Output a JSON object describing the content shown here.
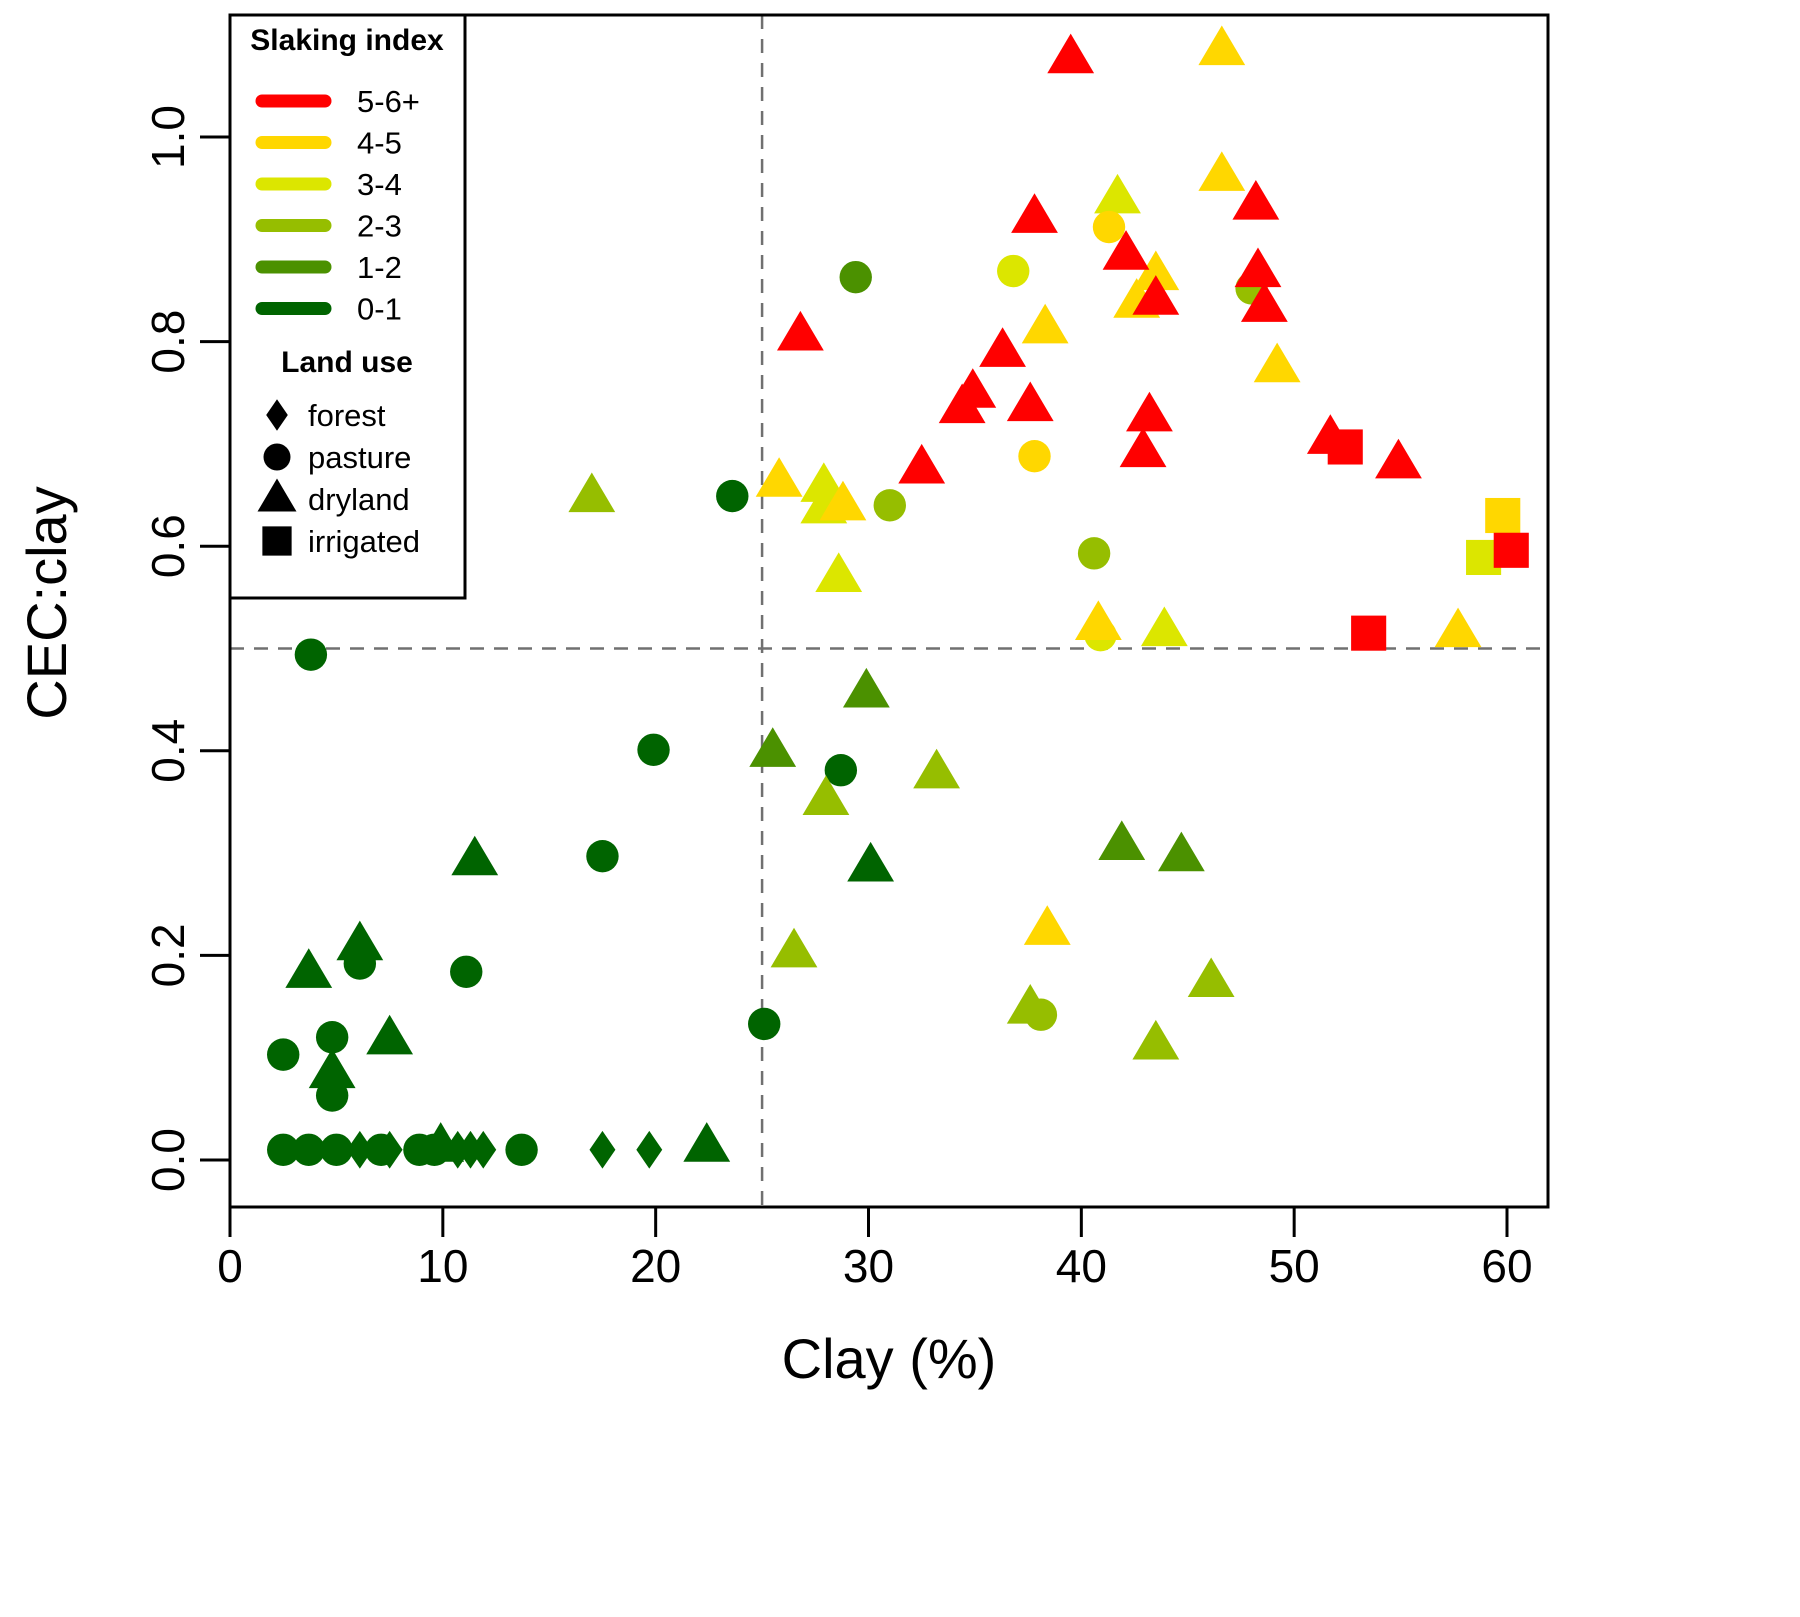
{
  "chart_data": {
    "type": "scatter",
    "title": "",
    "xlabel": "Clay (%)",
    "ylabel": "CEC:clay",
    "xlim": [
      0,
      62
    ],
    "ylim": [
      -0.045,
      1.12
    ],
    "xticks": [
      0,
      10,
      20,
      30,
      40,
      50,
      60
    ],
    "yticks": [
      0.0,
      0.2,
      0.4,
      0.6,
      0.8,
      1.0
    ],
    "xtick_labels": [
      "0",
      "10",
      "20",
      "30",
      "40",
      "50",
      "60"
    ],
    "ytick_labels": [
      "0.0",
      "0.2",
      "0.4",
      "0.6",
      "0.8",
      "1.0"
    ],
    "grid": false,
    "reference_lines": {
      "vertical_x": 25,
      "horizontal_y": 0.5,
      "style": "dashed",
      "color": "#707070"
    },
    "legend": {
      "placement": "top-left",
      "color_title": "Slaking index",
      "color_entries": [
        {
          "key": "5-6+",
          "label": "5-6+",
          "color": "#FF0000"
        },
        {
          "key": "4-5",
          "label": "4-5",
          "color": "#FFD700"
        },
        {
          "key": "3-4",
          "label": "3-4",
          "color": "#DCE600"
        },
        {
          "key": "2-3",
          "label": "2-3",
          "color": "#96BE00"
        },
        {
          "key": "1-2",
          "label": "1-2",
          "color": "#4B9100"
        },
        {
          "key": "0-1",
          "label": "0-1",
          "color": "#006400"
        }
      ],
      "shape_title": "Land use",
      "shape_entries": [
        {
          "key": "forest",
          "label": "forest",
          "shape": "diamond"
        },
        {
          "key": "pasture",
          "label": "pasture",
          "shape": "circle"
        },
        {
          "key": "dryland",
          "label": "dryland",
          "shape": "triangle"
        },
        {
          "key": "irrigated",
          "label": "irrigated",
          "shape": "square"
        }
      ]
    },
    "points": [
      {
        "x": 2.5,
        "y": 0.01,
        "land_use": "pasture",
        "slaking": "0-1"
      },
      {
        "x": 3.7,
        "y": 0.01,
        "land_use": "pasture",
        "slaking": "0-1"
      },
      {
        "x": 5.0,
        "y": 0.01,
        "land_use": "pasture",
        "slaking": "0-1"
      },
      {
        "x": 6.1,
        "y": 0.01,
        "land_use": "forest",
        "slaking": "0-1"
      },
      {
        "x": 7.1,
        "y": 0.01,
        "land_use": "pasture",
        "slaking": "0-1"
      },
      {
        "x": 7.5,
        "y": 0.01,
        "land_use": "forest",
        "slaking": "0-1"
      },
      {
        "x": 8.9,
        "y": 0.01,
        "land_use": "pasture",
        "slaking": "0-1"
      },
      {
        "x": 9.6,
        "y": 0.01,
        "land_use": "pasture",
        "slaking": "0-1"
      },
      {
        "x": 9.9,
        "y": 0.013,
        "land_use": "dryland",
        "slaking": "0-1"
      },
      {
        "x": 10.7,
        "y": 0.01,
        "land_use": "forest",
        "slaking": "0-1"
      },
      {
        "x": 11.3,
        "y": 0.01,
        "land_use": "forest",
        "slaking": "0-1"
      },
      {
        "x": 11.9,
        "y": 0.01,
        "land_use": "forest",
        "slaking": "0-1"
      },
      {
        "x": 13.7,
        "y": 0.01,
        "land_use": "pasture",
        "slaking": "0-1"
      },
      {
        "x": 17.5,
        "y": 0.01,
        "land_use": "forest",
        "slaking": "0-1"
      },
      {
        "x": 19.7,
        "y": 0.01,
        "land_use": "forest",
        "slaking": "0-1"
      },
      {
        "x": 22.4,
        "y": 0.013,
        "land_use": "dryland",
        "slaking": "0-1"
      },
      {
        "x": 2.5,
        "y": 0.103,
        "land_use": "pasture",
        "slaking": "0-1"
      },
      {
        "x": 4.8,
        "y": 0.12,
        "land_use": "pasture",
        "slaking": "0-1"
      },
      {
        "x": 4.8,
        "y": 0.063,
        "land_use": "pasture",
        "slaking": "0-1"
      },
      {
        "x": 4.8,
        "y": 0.085,
        "land_use": "dryland",
        "slaking": "0-1"
      },
      {
        "x": 7.5,
        "y": 0.118,
        "land_use": "dryland",
        "slaking": "0-1"
      },
      {
        "x": 3.7,
        "y": 0.183,
        "land_use": "dryland",
        "slaking": "0-1"
      },
      {
        "x": 6.1,
        "y": 0.192,
        "land_use": "pasture",
        "slaking": "0-1"
      },
      {
        "x": 6.1,
        "y": 0.21,
        "land_use": "dryland",
        "slaking": "0-1"
      },
      {
        "x": 11.1,
        "y": 0.184,
        "land_use": "pasture",
        "slaking": "0-1"
      },
      {
        "x": 11.5,
        "y": 0.293,
        "land_use": "dryland",
        "slaking": "0-1"
      },
      {
        "x": 17.5,
        "y": 0.297,
        "land_use": "pasture",
        "slaking": "0-1"
      },
      {
        "x": 19.9,
        "y": 0.401,
        "land_use": "pasture",
        "slaking": "0-1"
      },
      {
        "x": 3.8,
        "y": 0.494,
        "land_use": "pasture",
        "slaking": "0-1"
      },
      {
        "x": 23.6,
        "y": 0.649,
        "land_use": "pasture",
        "slaking": "0-1"
      },
      {
        "x": 25.1,
        "y": 0.133,
        "land_use": "pasture",
        "slaking": "0-1"
      },
      {
        "x": 28.7,
        "y": 0.381,
        "land_use": "pasture",
        "slaking": "0-1"
      },
      {
        "x": 30.1,
        "y": 0.287,
        "land_use": "dryland",
        "slaking": "0-1"
      },
      {
        "x": 29.4,
        "y": 0.863,
        "land_use": "pasture",
        "slaking": "1-2"
      },
      {
        "x": 25.5,
        "y": 0.399,
        "land_use": "dryland",
        "slaking": "1-2"
      },
      {
        "x": 29.9,
        "y": 0.457,
        "land_use": "dryland",
        "slaking": "1-2"
      },
      {
        "x": 41.9,
        "y": 0.308,
        "land_use": "dryland",
        "slaking": "1-2"
      },
      {
        "x": 44.7,
        "y": 0.297,
        "land_use": "dryland",
        "slaking": "1-2"
      },
      {
        "x": 17.0,
        "y": 0.648,
        "land_use": "dryland",
        "slaking": "2-3"
      },
      {
        "x": 31.0,
        "y": 0.64,
        "land_use": "pasture",
        "slaking": "2-3"
      },
      {
        "x": 40.6,
        "y": 0.593,
        "land_use": "pasture",
        "slaking": "2-3"
      },
      {
        "x": 28.0,
        "y": 0.352,
        "land_use": "dryland",
        "slaking": "2-3"
      },
      {
        "x": 33.2,
        "y": 0.378,
        "land_use": "dryland",
        "slaking": "2-3"
      },
      {
        "x": 26.5,
        "y": 0.203,
        "land_use": "dryland",
        "slaking": "2-3"
      },
      {
        "x": 37.6,
        "y": 0.148,
        "land_use": "dryland",
        "slaking": "2-3"
      },
      {
        "x": 38.1,
        "y": 0.142,
        "land_use": "pasture",
        "slaking": "2-3"
      },
      {
        "x": 43.5,
        "y": 0.113,
        "land_use": "dryland",
        "slaking": "2-3"
      },
      {
        "x": 46.1,
        "y": 0.174,
        "land_use": "dryland",
        "slaking": "2-3"
      },
      {
        "x": 48.0,
        "y": 0.852,
        "land_use": "pasture",
        "slaking": "2-3"
      },
      {
        "x": 36.8,
        "y": 0.869,
        "land_use": "pasture",
        "slaking": "3-4"
      },
      {
        "x": 41.7,
        "y": 0.94,
        "land_use": "dryland",
        "slaking": "3-4"
      },
      {
        "x": 27.9,
        "y": 0.658,
        "land_use": "dryland",
        "slaking": "3-4"
      },
      {
        "x": 27.9,
        "y": 0.637,
        "land_use": "dryland",
        "slaking": "3-4"
      },
      {
        "x": 28.6,
        "y": 0.57,
        "land_use": "dryland",
        "slaking": "3-4"
      },
      {
        "x": 40.9,
        "y": 0.513,
        "land_use": "pasture",
        "slaking": "3-4"
      },
      {
        "x": 43.9,
        "y": 0.517,
        "land_use": "dryland",
        "slaking": "3-4"
      },
      {
        "x": 58.9,
        "y": 0.589,
        "land_use": "irrigated",
        "slaking": "3-4"
      },
      {
        "x": 46.6,
        "y": 1.085,
        "land_use": "dryland",
        "slaking": "4-5"
      },
      {
        "x": 46.6,
        "y": 0.962,
        "land_use": "dryland",
        "slaking": "4-5"
      },
      {
        "x": 41.3,
        "y": 0.912,
        "land_use": "pasture",
        "slaking": "4-5"
      },
      {
        "x": 43.5,
        "y": 0.865,
        "land_use": "dryland",
        "slaking": "4-5"
      },
      {
        "x": 42.6,
        "y": 0.838,
        "land_use": "dryland",
        "slaking": "4-5"
      },
      {
        "x": 38.3,
        "y": 0.813,
        "land_use": "dryland",
        "slaking": "4-5"
      },
      {
        "x": 49.2,
        "y": 0.775,
        "land_use": "dryland",
        "slaking": "4-5"
      },
      {
        "x": 37.8,
        "y": 0.688,
        "land_use": "pasture",
        "slaking": "4-5"
      },
      {
        "x": 25.8,
        "y": 0.663,
        "land_use": "dryland",
        "slaking": "4-5"
      },
      {
        "x": 28.8,
        "y": 0.64,
        "land_use": "dryland",
        "slaking": "4-5"
      },
      {
        "x": 40.8,
        "y": 0.523,
        "land_use": "dryland",
        "slaking": "4-5"
      },
      {
        "x": 57.7,
        "y": 0.516,
        "land_use": "dryland",
        "slaking": "4-5"
      },
      {
        "x": 38.4,
        "y": 0.225,
        "land_use": "dryland",
        "slaking": "4-5"
      },
      {
        "x": 59.8,
        "y": 0.63,
        "land_use": "irrigated",
        "slaking": "4-5"
      },
      {
        "x": 39.5,
        "y": 1.077,
        "land_use": "dryland",
        "slaking": "5-6+"
      },
      {
        "x": 37.8,
        "y": 0.921,
        "land_use": "dryland",
        "slaking": "5-6+"
      },
      {
        "x": 48.2,
        "y": 0.934,
        "land_use": "dryland",
        "slaking": "5-6+"
      },
      {
        "x": 42.1,
        "y": 0.885,
        "land_use": "dryland",
        "slaking": "5-6+"
      },
      {
        "x": 48.3,
        "y": 0.868,
        "land_use": "dryland",
        "slaking": "5-6+"
      },
      {
        "x": 43.5,
        "y": 0.841,
        "land_use": "dryland",
        "slaking": "5-6+"
      },
      {
        "x": 48.6,
        "y": 0.834,
        "land_use": "dryland",
        "slaking": "5-6+"
      },
      {
        "x": 26.8,
        "y": 0.806,
        "land_use": "dryland",
        "slaking": "5-6+"
      },
      {
        "x": 36.3,
        "y": 0.79,
        "land_use": "dryland",
        "slaking": "5-6+"
      },
      {
        "x": 34.9,
        "y": 0.75,
        "land_use": "dryland",
        "slaking": "5-6+"
      },
      {
        "x": 34.4,
        "y": 0.735,
        "land_use": "dryland",
        "slaking": "5-6+"
      },
      {
        "x": 37.6,
        "y": 0.737,
        "land_use": "dryland",
        "slaking": "5-6+"
      },
      {
        "x": 43.2,
        "y": 0.727,
        "land_use": "dryland",
        "slaking": "5-6+"
      },
      {
        "x": 42.9,
        "y": 0.692,
        "land_use": "dryland",
        "slaking": "5-6+"
      },
      {
        "x": 32.5,
        "y": 0.676,
        "land_use": "dryland",
        "slaking": "5-6+"
      },
      {
        "x": 51.7,
        "y": 0.705,
        "land_use": "dryland",
        "slaking": "5-6+"
      },
      {
        "x": 54.9,
        "y": 0.681,
        "land_use": "dryland",
        "slaking": "5-6+"
      },
      {
        "x": 52.4,
        "y": 0.697,
        "land_use": "irrigated",
        "slaking": "5-6+"
      },
      {
        "x": 60.2,
        "y": 0.596,
        "land_use": "irrigated",
        "slaking": "5-6+"
      },
      {
        "x": 53.5,
        "y": 0.515,
        "land_use": "irrigated",
        "slaking": "5-6+"
      }
    ]
  }
}
